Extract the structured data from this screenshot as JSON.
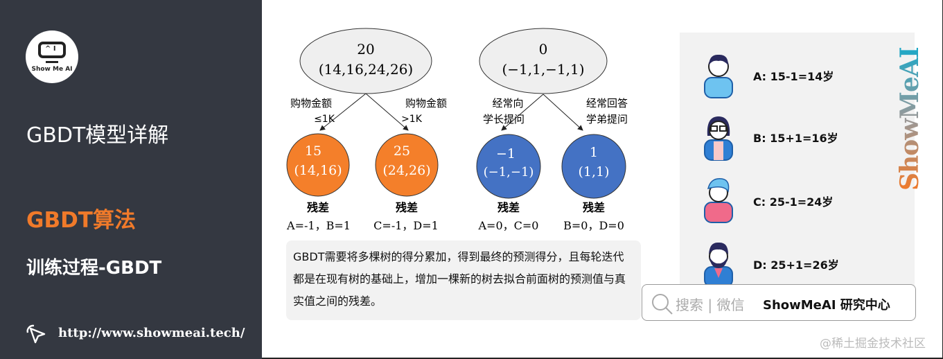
{
  "sidebar": {
    "logo_text": "Show Me AI",
    "logo_screen": "^ I",
    "title": "GBDT模型详解",
    "section": "GBDT算法",
    "subsection": "训练过程-GBDT",
    "url": "http://www.showmeai.tech/"
  },
  "colors": {
    "sidebar_bg": "#343841",
    "accent": "#f07a2a",
    "orange_node": "#f47f2a",
    "blue_node": "#4472c4"
  },
  "tree1": {
    "root_value": "20",
    "root_set": "(14,16,24,26)",
    "left_edge": [
      "购物金额",
      "≤1K"
    ],
    "right_edge": [
      "购物金额",
      ">1K"
    ],
    "left_leaf": {
      "value": "15",
      "set": "(14,16)",
      "label": "残差",
      "residual": "A=-1，B=1"
    },
    "right_leaf": {
      "value": "25",
      "set": "(24,26)",
      "label": "残差",
      "residual": "C=-1，D=1"
    }
  },
  "tree2": {
    "root_value": "0",
    "root_set": "(−1,1,−1,1)",
    "left_edge": [
      "经常向",
      "学长提问"
    ],
    "right_edge": [
      "经常回答",
      "学弟提问"
    ],
    "left_leaf": {
      "value": "−1",
      "set": "(−1,−1)",
      "label": "残差",
      "residual": "A=0，C=0"
    },
    "right_leaf": {
      "value": "1",
      "set": "(1,1)",
      "label": "残差",
      "residual": "B=0，D=0"
    }
  },
  "description": "GBDT需要将多棵树的得分累加，得到最终的预测得分，且每轮迭代都是在现有树的基础上，增加一棵新的树去拟合前面树的预测值与真实值之间的残差。",
  "people": [
    {
      "icon": "boy-avatar",
      "text": "A: 15-1=14岁"
    },
    {
      "icon": "girl-glasses-avatar",
      "text": "B: 15+1=16岁"
    },
    {
      "icon": "man-blue-hair-avatar",
      "text": "C: 25-1=24岁"
    },
    {
      "icon": "bearded-man-avatar",
      "text": "D: 25+1=26岁"
    }
  ],
  "search": {
    "placeholder": "搜索 | 微信",
    "brand": "ShowMeAI 研究中心"
  },
  "watermark": "@稀土掘金技术社区",
  "vertical_watermark": "ShowMeAI"
}
